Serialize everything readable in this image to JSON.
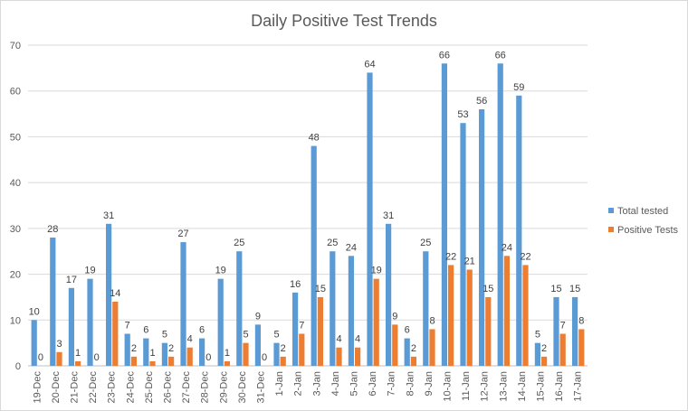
{
  "chart_data": {
    "type": "bar",
    "title": "Daily Positive Test Trends",
    "xlabel": "",
    "ylabel": "",
    "ylim": [
      0,
      70
    ],
    "yticks": [
      0,
      10,
      20,
      30,
      40,
      50,
      60,
      70
    ],
    "grid": true,
    "legend_position": "right",
    "categories": [
      "19-Dec",
      "20-Dec",
      "21-Dec",
      "22-Dec",
      "23-Dec",
      "24-Dec",
      "25-Dec",
      "26-Dec",
      "27-Dec",
      "28-Dec",
      "29-Dec",
      "30-Dec",
      "31-Dec",
      "1-Jan",
      "2-Jan",
      "3-Jan",
      "4-Jan",
      "5-Jan",
      "6-Jan",
      "7-Jan",
      "8-Jan",
      "9-Jan",
      "10-Jan",
      "11-Jan",
      "12-Jan",
      "13-Jan",
      "14-Jan",
      "15-Jan",
      "16-Jan",
      "17-Jan"
    ],
    "series": [
      {
        "name": "Total tested",
        "color": "#5B9BD5",
        "values": [
          10,
          28,
          17,
          19,
          31,
          7,
          6,
          5,
          27,
          6,
          19,
          25,
          9,
          5,
          16,
          48,
          25,
          24,
          64,
          31,
          6,
          25,
          66,
          53,
          56,
          66,
          59,
          5,
          15,
          15
        ]
      },
      {
        "name": "Positive Tests",
        "color": "#ED7D31",
        "values": [
          0,
          3,
          1,
          0,
          14,
          2,
          1,
          2,
          4,
          0,
          1,
          5,
          0,
          2,
          7,
          15,
          4,
          4,
          19,
          9,
          2,
          8,
          22,
          21,
          15,
          24,
          22,
          2,
          7,
          8
        ]
      }
    ]
  }
}
